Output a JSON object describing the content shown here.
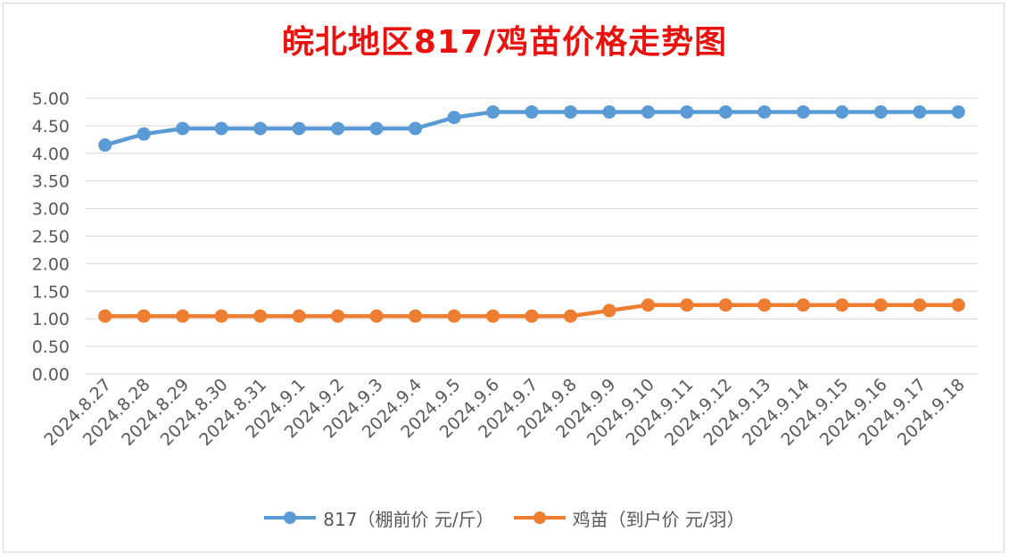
{
  "title": "皖北地区817/鸡苗价格走势图",
  "colors": {
    "series_817": "#5b9bd5",
    "series_chick": "#ed7d31",
    "title": "#e8130f",
    "grid": "#d9d9d9",
    "text": "#595959"
  },
  "chart_data": {
    "type": "line",
    "title": "皖北地区817/鸡苗价格走势图",
    "categories": [
      "2024.8.27",
      "2024.8.28",
      "2024.8.29",
      "2024.8.30",
      "2024.8.31",
      "2024.9.1",
      "2024.9.2",
      "2024.9.3",
      "2024.9.4",
      "2024.9.5",
      "2024.9.6",
      "2024.9.7",
      "2024.9.8",
      "2024.9.9",
      "2024.9.10",
      "2024.9.11",
      "2024.9.12",
      "2024.9.13",
      "2024.9.14",
      "2024.9.15",
      "2024.9.16",
      "2024.9.17",
      "2024.9.18"
    ],
    "y_ticks": [
      "0.00",
      "0.50",
      "1.00",
      "1.50",
      "2.00",
      "2.50",
      "3.00",
      "3.50",
      "4.00",
      "4.50",
      "5.00"
    ],
    "ylim": [
      0,
      5
    ],
    "grid": true,
    "legend_position": "bottom",
    "series": [
      {
        "name": "817（棚前价 元/斤）",
        "color": "#5b9bd5",
        "values": [
          4.15,
          4.35,
          4.45,
          4.45,
          4.45,
          4.45,
          4.45,
          4.45,
          4.45,
          4.65,
          4.75,
          4.75,
          4.75,
          4.75,
          4.75,
          4.75,
          4.75,
          4.75,
          4.75,
          4.75,
          4.75,
          4.75,
          4.75
        ]
      },
      {
        "name": "鸡苗（到户价 元/羽）",
        "color": "#ed7d31",
        "values": [
          1.05,
          1.05,
          1.05,
          1.05,
          1.05,
          1.05,
          1.05,
          1.05,
          1.05,
          1.05,
          1.05,
          1.05,
          1.05,
          1.15,
          1.25,
          1.25,
          1.25,
          1.25,
          1.25,
          1.25,
          1.25,
          1.25,
          1.25
        ]
      }
    ]
  }
}
